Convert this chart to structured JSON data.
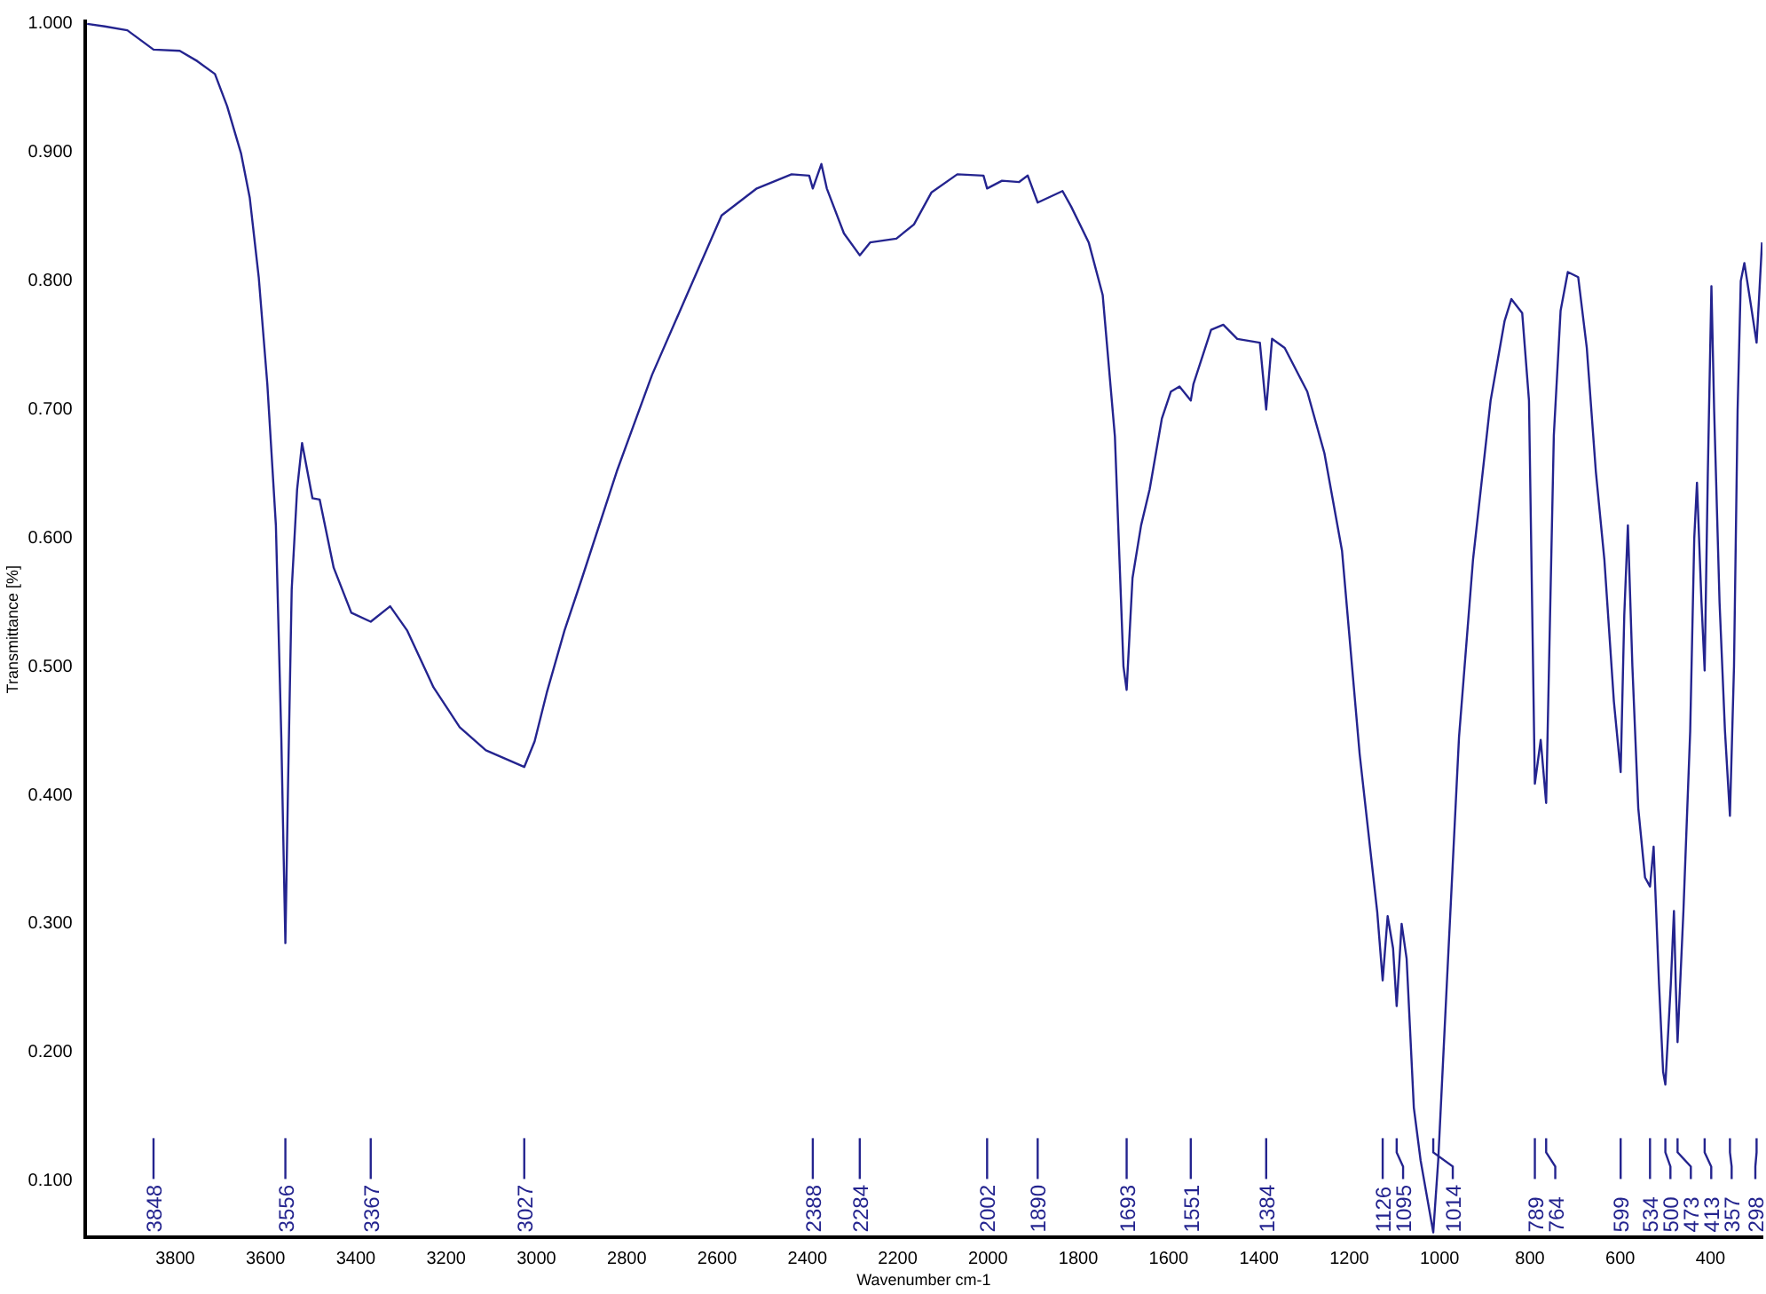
{
  "chart_data": {
    "type": "line",
    "xlabel": "Wavenumber cm-1",
    "ylabel": "Transmittance [%]",
    "xlim": [
      4000,
      285
    ],
    "ylim": [
      0.056,
      1.002
    ],
    "xticks": [
      400,
      600,
      800,
      1000,
      1200,
      1400,
      1600,
      1800,
      2000,
      2200,
      2400,
      2600,
      2800,
      3000,
      3200,
      3400,
      3600,
      3800
    ],
    "yticks": [
      {
        "value": 0.1,
        "label": "0.100"
      },
      {
        "value": 0.2,
        "label": "0.200"
      },
      {
        "value": 0.3,
        "label": "0.300"
      },
      {
        "value": 0.4,
        "label": "0.400"
      },
      {
        "value": 0.5,
        "label": "0.500"
      },
      {
        "value": 0.6,
        "label": "0.600"
      },
      {
        "value": 0.7,
        "label": "0.700"
      },
      {
        "value": 0.8,
        "label": "0.800"
      },
      {
        "value": 0.9,
        "label": "0.900"
      },
      {
        "value": 1.0,
        "label": "1.000"
      }
    ],
    "grid": false,
    "legend": false,
    "marker": "none",
    "line_style": "solid",
    "series": [
      {
        "color": "#24248f",
        "x": [
          3995,
          3956,
          3906,
          3848,
          3790,
          3751,
          3712,
          3685,
          3654,
          3635,
          3615,
          3596,
          3577,
          3565,
          3556,
          3550,
          3542,
          3530,
          3519,
          3496,
          3480,
          3449,
          3410,
          3367,
          3324,
          3286,
          3228,
          3170,
          3112,
          3027,
          3004,
          2977,
          2938,
          2899,
          2822,
          2744,
          2667,
          2590,
          2512,
          2435,
          2396,
          2388,
          2369,
          2357,
          2319,
          2284,
          2261,
          2203,
          2164,
          2125,
          2068,
          2010,
          2002,
          1969,
          1931,
          1912,
          1890,
          1835,
          1816,
          1777,
          1746,
          1719,
          1700,
          1693,
          1680,
          1661,
          1642,
          1615,
          1595,
          1576,
          1551,
          1545,
          1506,
          1479,
          1448,
          1398,
          1384,
          1371,
          1343,
          1293,
          1255,
          1216,
          1177,
          1138,
          1126,
          1115,
          1103,
          1095,
          1084,
          1073,
          1057,
          1042,
          1014,
          1003,
          984,
          957,
          926,
          887,
          856,
          841,
          817,
          802,
          789,
          776,
          764,
          747,
          732,
          716,
          693,
          674,
          654,
          635,
          614,
          599,
          591,
          583,
          573,
          560,
          545,
          534,
          526,
          514,
          505,
          500,
          488,
          481,
          477,
          473,
          460,
          445,
          436,
          430,
          420,
          413,
          406,
          398,
          392,
          380,
          368,
          357,
          348,
          340,
          333,
          325,
          310,
          298,
          292,
          286
        ],
        "values": [
          1.0,
          0.998,
          0.995,
          0.98,
          0.979,
          0.971,
          0.961,
          0.936,
          0.899,
          0.865,
          0.803,
          0.72,
          0.61,
          0.445,
          0.285,
          0.41,
          0.56,
          0.638,
          0.674,
          0.631,
          0.63,
          0.577,
          0.542,
          0.535,
          0.547,
          0.528,
          0.484,
          0.453,
          0.435,
          0.422,
          0.442,
          0.48,
          0.528,
          0.569,
          0.652,
          0.727,
          0.789,
          0.851,
          0.872,
          0.883,
          0.882,
          0.872,
          0.891,
          0.872,
          0.837,
          0.82,
          0.83,
          0.833,
          0.844,
          0.869,
          0.883,
          0.882,
          0.872,
          0.878,
          0.877,
          0.882,
          0.861,
          0.87,
          0.858,
          0.83,
          0.789,
          0.679,
          0.5,
          0.482,
          0.569,
          0.61,
          0.638,
          0.693,
          0.714,
          0.718,
          0.707,
          0.72,
          0.762,
          0.766,
          0.755,
          0.752,
          0.7,
          0.755,
          0.748,
          0.714,
          0.666,
          0.59,
          0.432,
          0.309,
          0.256,
          0.306,
          0.281,
          0.236,
          0.3,
          0.273,
          0.157,
          0.116,
          0.06,
          0.116,
          0.253,
          0.445,
          0.583,
          0.707,
          0.769,
          0.786,
          0.775,
          0.707,
          0.409,
          0.443,
          0.394,
          0.68,
          0.777,
          0.807,
          0.803,
          0.748,
          0.652,
          0.583,
          0.473,
          0.418,
          0.54,
          0.61,
          0.5,
          0.39,
          0.336,
          0.329,
          0.36,
          0.253,
          0.185,
          0.175,
          0.253,
          0.31,
          0.253,
          0.208,
          0.31,
          0.45,
          0.6,
          0.643,
          0.55,
          0.497,
          0.65,
          0.796,
          0.7,
          0.55,
          0.45,
          0.384,
          0.5,
          0.7,
          0.8,
          0.814,
          0.78,
          0.752,
          0.79,
          0.83
        ]
      }
    ],
    "annotations": [
      {
        "text": "3848",
        "x": 3848
      },
      {
        "text": "3556",
        "x": 3556
      },
      {
        "text": "3367",
        "x": 3367
      },
      {
        "text": "3027",
        "x": 3027
      },
      {
        "text": "2388",
        "x": 2388
      },
      {
        "text": "2284",
        "x": 2284
      },
      {
        "text": "2002",
        "x": 2002
      },
      {
        "text": "1890",
        "x": 1890
      },
      {
        "text": "1693",
        "x": 1693
      },
      {
        "text": "1551",
        "x": 1551
      },
      {
        "text": "1384",
        "x": 1384
      },
      {
        "text": "1126",
        "x": 1126
      },
      {
        "text": "1095",
        "x": 1095
      },
      {
        "text": "1014",
        "x": 1014
      },
      {
        "text": "789",
        "x": 789
      },
      {
        "text": "764",
        "x": 764
      },
      {
        "text": "599",
        "x": 599
      },
      {
        "text": "534",
        "x": 534
      },
      {
        "text": "500",
        "x": 500
      },
      {
        "text": "473",
        "x": 473
      },
      {
        "text": "413",
        "x": 413
      },
      {
        "text": "357",
        "x": 357
      },
      {
        "text": "298",
        "x": 298
      }
    ]
  }
}
